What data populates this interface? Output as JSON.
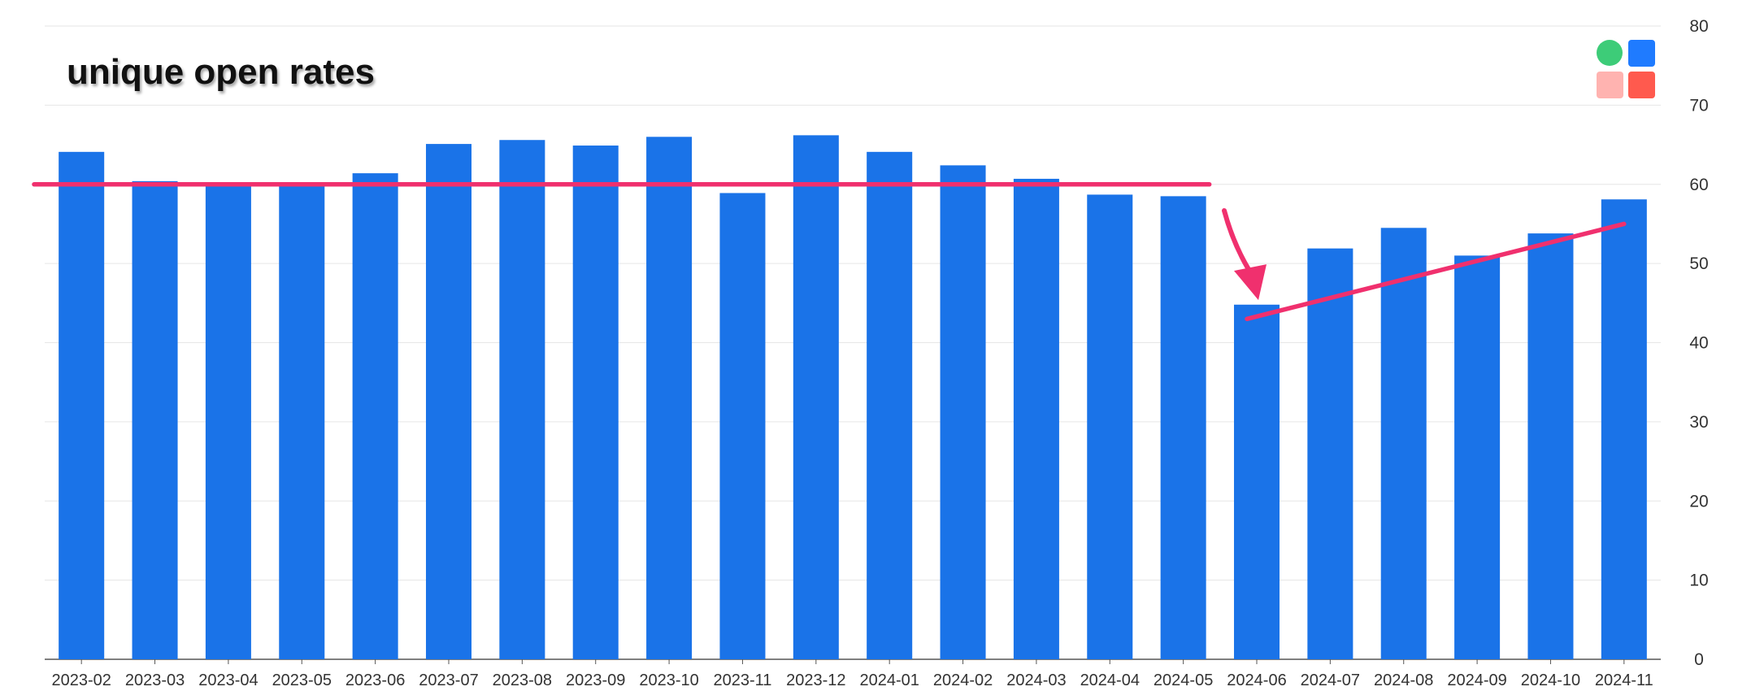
{
  "colors": {
    "bar": "#1a73e8",
    "annotation": "#f0306e",
    "grid": "#e6e6e6",
    "axis": "#555555",
    "logo": [
      "#3dcc78",
      "#1f7bff",
      "#ffb3b0",
      "#ff5a4e"
    ]
  },
  "logo_icon": "app-logo-icon",
  "chart_data": {
    "type": "bar",
    "title": "unique open rates",
    "xlabel": "",
    "ylabel": "",
    "ylim": [
      0,
      80
    ],
    "y_ticks": [
      0,
      10,
      20,
      30,
      40,
      50,
      60,
      70,
      80
    ],
    "y_axis_side": "right",
    "grid": true,
    "legend": "none",
    "categories": [
      "2023-02",
      "2023-03",
      "2023-04",
      "2023-05",
      "2023-06",
      "2023-07",
      "2023-08",
      "2023-09",
      "2023-10",
      "2023-11",
      "2023-12",
      "2024-01",
      "2024-02",
      "2024-03",
      "2024-04",
      "2024-05",
      "2024-06",
      "2024-07",
      "2024-08",
      "2024-09",
      "2024-10",
      "2024-11"
    ],
    "values": [
      64.1,
      60.4,
      59.9,
      60.0,
      61.4,
      65.1,
      65.6,
      64.9,
      66.0,
      58.9,
      66.2,
      64.1,
      62.4,
      60.7,
      58.7,
      58.5,
      44.8,
      51.9,
      54.5,
      51.0,
      53.8,
      58.1
    ],
    "annotations": [
      {
        "kind": "line",
        "from": {
          "x": "2023-02",
          "y": 60
        },
        "to": {
          "x": "2024-05",
          "y": 60
        }
      },
      {
        "kind": "line",
        "from": {
          "x": "2024-06",
          "y": 43
        },
        "to": {
          "x": "2024-11",
          "y": 55
        }
      },
      {
        "kind": "arrow",
        "target": {
          "x": "2024-06",
          "y": 46
        }
      }
    ]
  }
}
